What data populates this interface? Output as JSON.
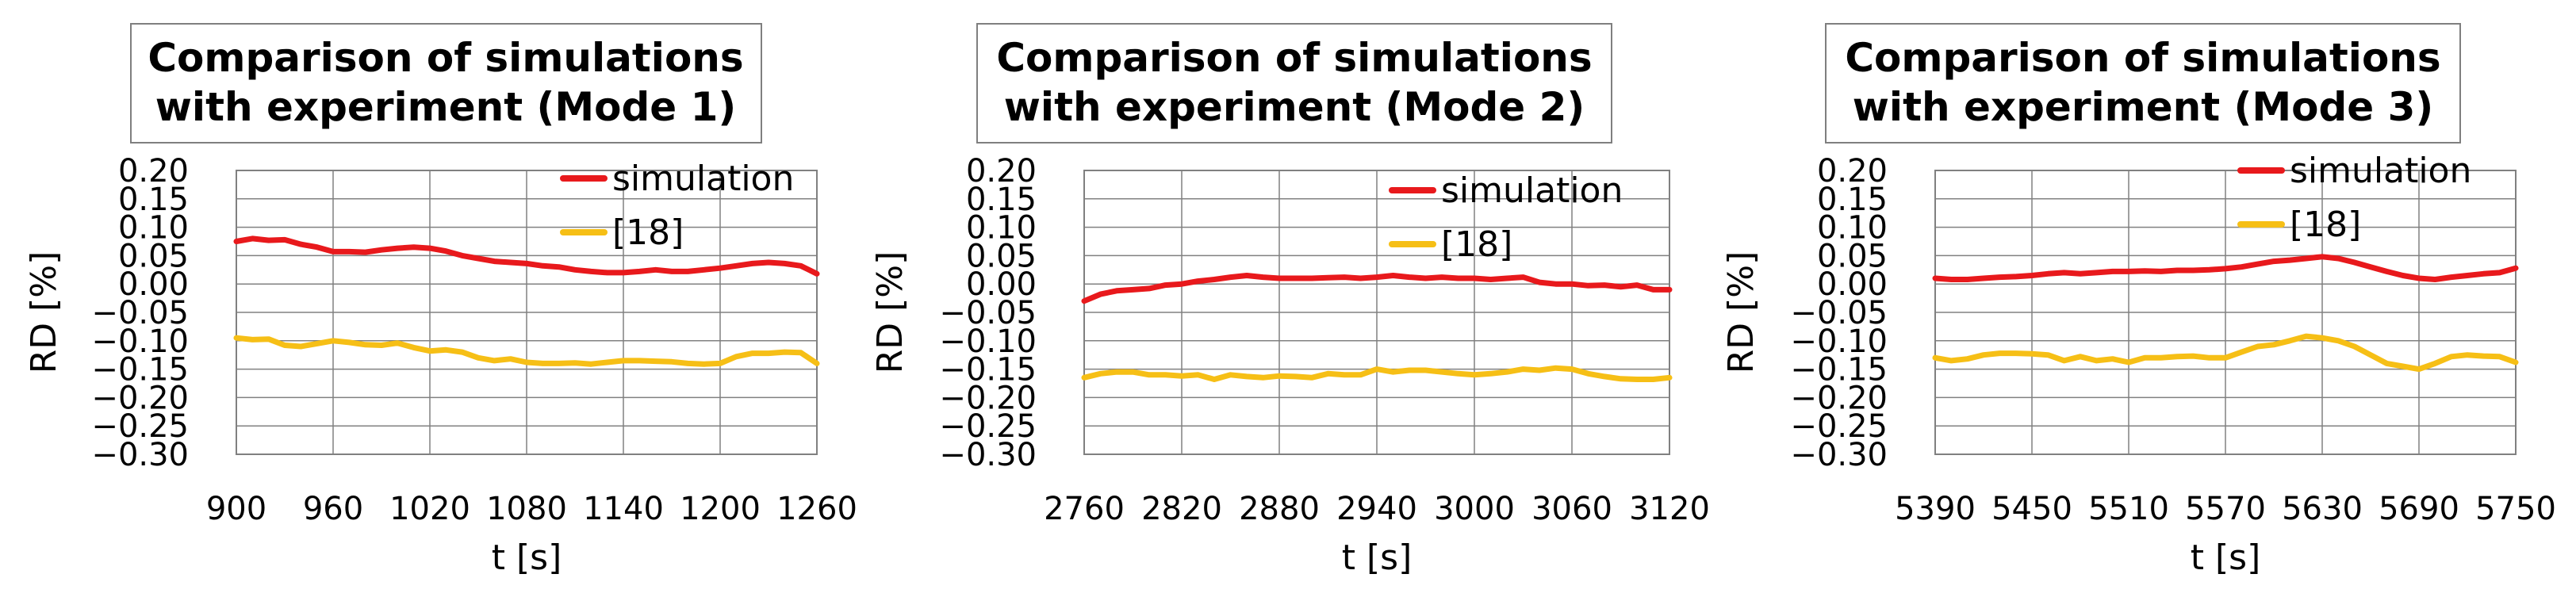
{
  "chart_data": [
    {
      "type": "line",
      "title": [
        "Comparison of simulations",
        "with experiment (Mode 1)"
      ],
      "xlabel": "t [s]",
      "ylabel": "RD [%]",
      "xlim": [
        900,
        1260
      ],
      "ylim": [
        -0.3,
        0.2
      ],
      "xticks": [
        900,
        960,
        1020,
        1080,
        1140,
        1200,
        1260
      ],
      "xtick_labels": [
        "900",
        "960",
        "1020",
        "1080",
        "1140",
        "1200",
        "1260"
      ],
      "yticks": [
        0.2,
        0.15,
        0.1,
        0.05,
        0.0,
        -0.05,
        -0.1,
        -0.15,
        -0.2,
        -0.25,
        -0.3
      ],
      "ytick_labels": [
        "0.20",
        "0.15",
        "0.10",
        "0.05",
        "0.00",
        "−0.05",
        "−0.10",
        "−0.15",
        "−0.20",
        "−0.25",
        "−0.30"
      ],
      "grid": true,
      "legend_position": "top-right",
      "series": [
        {
          "name": "simulation",
          "color": "#e8191c",
          "x": [
            900,
            910,
            920,
            930,
            940,
            950,
            960,
            970,
            980,
            990,
            1000,
            1010,
            1020,
            1030,
            1040,
            1050,
            1060,
            1070,
            1080,
            1090,
            1100,
            1110,
            1120,
            1130,
            1140,
            1150,
            1160,
            1170,
            1180,
            1190,
            1200,
            1210,
            1220,
            1230,
            1240,
            1250,
            1260
          ],
          "y": [
            0.075,
            0.08,
            0.077,
            0.078,
            0.07,
            0.065,
            0.057,
            0.057,
            0.056,
            0.06,
            0.063,
            0.065,
            0.063,
            0.058,
            0.05,
            0.045,
            0.04,
            0.038,
            0.036,
            0.032,
            0.03,
            0.025,
            0.022,
            0.02,
            0.02,
            0.022,
            0.025,
            0.022,
            0.022,
            0.025,
            0.028,
            0.032,
            0.036,
            0.038,
            0.036,
            0.032,
            0.018
          ]
        },
        {
          "name": "[18]",
          "color": "#f6bf16",
          "x": [
            900,
            910,
            920,
            930,
            940,
            950,
            960,
            970,
            980,
            990,
            1000,
            1010,
            1020,
            1030,
            1040,
            1050,
            1060,
            1070,
            1080,
            1090,
            1100,
            1110,
            1120,
            1130,
            1140,
            1150,
            1160,
            1170,
            1180,
            1190,
            1200,
            1210,
            1220,
            1230,
            1240,
            1250,
            1260
          ],
          "y": [
            -0.095,
            -0.098,
            -0.097,
            -0.108,
            -0.11,
            -0.105,
            -0.1,
            -0.103,
            -0.107,
            -0.108,
            -0.104,
            -0.112,
            -0.118,
            -0.116,
            -0.12,
            -0.13,
            -0.135,
            -0.132,
            -0.138,
            -0.14,
            -0.14,
            -0.139,
            -0.141,
            -0.138,
            -0.135,
            -0.135,
            -0.136,
            -0.137,
            -0.14,
            -0.141,
            -0.14,
            -0.128,
            -0.122,
            -0.122,
            -0.12,
            -0.121,
            -0.14
          ]
        }
      ]
    },
    {
      "type": "line",
      "title": [
        "Comparison of simulations",
        "with experiment (Mode 2)"
      ],
      "xlabel": "t [s]",
      "ylabel": "RD [%]",
      "xlim": [
        2760,
        3120
      ],
      "ylim": [
        -0.3,
        0.2
      ],
      "xticks": [
        2760,
        2820,
        2880,
        2940,
        3000,
        3060,
        3120
      ],
      "xtick_labels": [
        "2760",
        "2820",
        "2880",
        "2940",
        "3000",
        "3060",
        "3120"
      ],
      "yticks": [
        0.2,
        0.15,
        0.1,
        0.05,
        0.0,
        -0.05,
        -0.1,
        -0.15,
        -0.2,
        -0.25,
        -0.3
      ],
      "ytick_labels": [
        "0.20",
        "0.15",
        "0.10",
        "0.05",
        "0.00",
        "−0.05",
        "−0.10",
        "−0.15",
        "−0.20",
        "−0.25",
        "−0.30"
      ],
      "grid": true,
      "legend_position": "top-right",
      "series": [
        {
          "name": "simulation",
          "color": "#e8191c",
          "x": [
            2760,
            2770,
            2780,
            2790,
            2800,
            2810,
            2820,
            2830,
            2840,
            2850,
            2860,
            2870,
            2880,
            2890,
            2900,
            2910,
            2920,
            2930,
            2940,
            2950,
            2960,
            2970,
            2980,
            2990,
            3000,
            3010,
            3020,
            3030,
            3040,
            3050,
            3060,
            3070,
            3080,
            3090,
            3100,
            3110,
            3120
          ],
          "y": [
            -0.03,
            -0.018,
            -0.012,
            -0.01,
            -0.008,
            -0.002,
            0.0,
            0.005,
            0.008,
            0.012,
            0.015,
            0.012,
            0.01,
            0.01,
            0.01,
            0.011,
            0.012,
            0.01,
            0.012,
            0.015,
            0.012,
            0.01,
            0.012,
            0.01,
            0.01,
            0.008,
            0.01,
            0.012,
            0.003,
            0.0,
            0.0,
            -0.003,
            -0.002,
            -0.005,
            -0.002,
            -0.01,
            -0.01
          ]
        },
        {
          "name": "[18]",
          "color": "#f6bf16",
          "x": [
            2760,
            2770,
            2780,
            2790,
            2800,
            2810,
            2820,
            2830,
            2840,
            2850,
            2860,
            2870,
            2880,
            2890,
            2900,
            2910,
            2920,
            2930,
            2940,
            2950,
            2960,
            2970,
            2980,
            2990,
            3000,
            3010,
            3020,
            3030,
            3040,
            3050,
            3060,
            3070,
            3080,
            3090,
            3100,
            3110,
            3120
          ],
          "y": [
            -0.165,
            -0.158,
            -0.155,
            -0.155,
            -0.16,
            -0.16,
            -0.162,
            -0.16,
            -0.168,
            -0.16,
            -0.163,
            -0.165,
            -0.162,
            -0.163,
            -0.165,
            -0.158,
            -0.16,
            -0.16,
            -0.15,
            -0.155,
            -0.152,
            -0.152,
            -0.155,
            -0.158,
            -0.16,
            -0.158,
            -0.155,
            -0.15,
            -0.152,
            -0.148,
            -0.15,
            -0.158,
            -0.163,
            -0.167,
            -0.168,
            -0.168,
            -0.165
          ]
        }
      ]
    },
    {
      "type": "line",
      "title": [
        "Comparison of simulations",
        "with experiment (Mode 3)"
      ],
      "xlabel": "t [s]",
      "ylabel": "RD [%]",
      "xlim": [
        5390,
        5750
      ],
      "ylim": [
        -0.3,
        0.2
      ],
      "xticks": [
        5390,
        5450,
        5510,
        5570,
        5630,
        5690,
        5750
      ],
      "xtick_labels": [
        "5390",
        "5450",
        "5510",
        "5570",
        "5630",
        "5690",
        "5750"
      ],
      "yticks": [
        0.2,
        0.15,
        0.1,
        0.05,
        0.0,
        -0.05,
        -0.1,
        -0.15,
        -0.2,
        -0.25,
        -0.3
      ],
      "ytick_labels": [
        "0.20",
        "0.15",
        "0.10",
        "0.05",
        "0.00",
        "−0.05",
        "−0.10",
        "−0.15",
        "−0.20",
        "−0.25",
        "−0.30"
      ],
      "grid": true,
      "legend_position": "top-right",
      "series": [
        {
          "name": "simulation",
          "color": "#e8191c",
          "x": [
            5390,
            5400,
            5410,
            5420,
            5430,
            5440,
            5450,
            5460,
            5470,
            5480,
            5490,
            5500,
            5510,
            5520,
            5530,
            5540,
            5550,
            5560,
            5570,
            5580,
            5590,
            5600,
            5610,
            5620,
            5630,
            5640,
            5650,
            5660,
            5670,
            5680,
            5690,
            5700,
            5710,
            5720,
            5730,
            5740,
            5750
          ],
          "y": [
            0.01,
            0.008,
            0.008,
            0.01,
            0.012,
            0.013,
            0.015,
            0.018,
            0.02,
            0.018,
            0.02,
            0.022,
            0.022,
            0.023,
            0.022,
            0.024,
            0.024,
            0.025,
            0.027,
            0.03,
            0.035,
            0.04,
            0.042,
            0.045,
            0.048,
            0.045,
            0.038,
            0.03,
            0.022,
            0.015,
            0.01,
            0.008,
            0.012,
            0.015,
            0.018,
            0.02,
            0.028
          ]
        },
        {
          "name": "[18]",
          "color": "#f6bf16",
          "x": [
            5390,
            5400,
            5410,
            5420,
            5430,
            5440,
            5450,
            5460,
            5470,
            5480,
            5490,
            5500,
            5510,
            5520,
            5530,
            5540,
            5550,
            5560,
            5570,
            5580,
            5590,
            5600,
            5610,
            5620,
            5630,
            5640,
            5650,
            5660,
            5670,
            5680,
            5690,
            5700,
            5710,
            5720,
            5730,
            5740,
            5750
          ],
          "y": [
            -0.13,
            -0.135,
            -0.132,
            -0.125,
            -0.122,
            -0.122,
            -0.123,
            -0.125,
            -0.135,
            -0.128,
            -0.135,
            -0.132,
            -0.138,
            -0.13,
            -0.13,
            -0.128,
            -0.127,
            -0.13,
            -0.13,
            -0.12,
            -0.11,
            -0.107,
            -0.1,
            -0.092,
            -0.095,
            -0.1,
            -0.11,
            -0.125,
            -0.14,
            -0.145,
            -0.15,
            -0.14,
            -0.128,
            -0.125,
            -0.127,
            -0.128,
            -0.138
          ]
        }
      ]
    }
  ]
}
